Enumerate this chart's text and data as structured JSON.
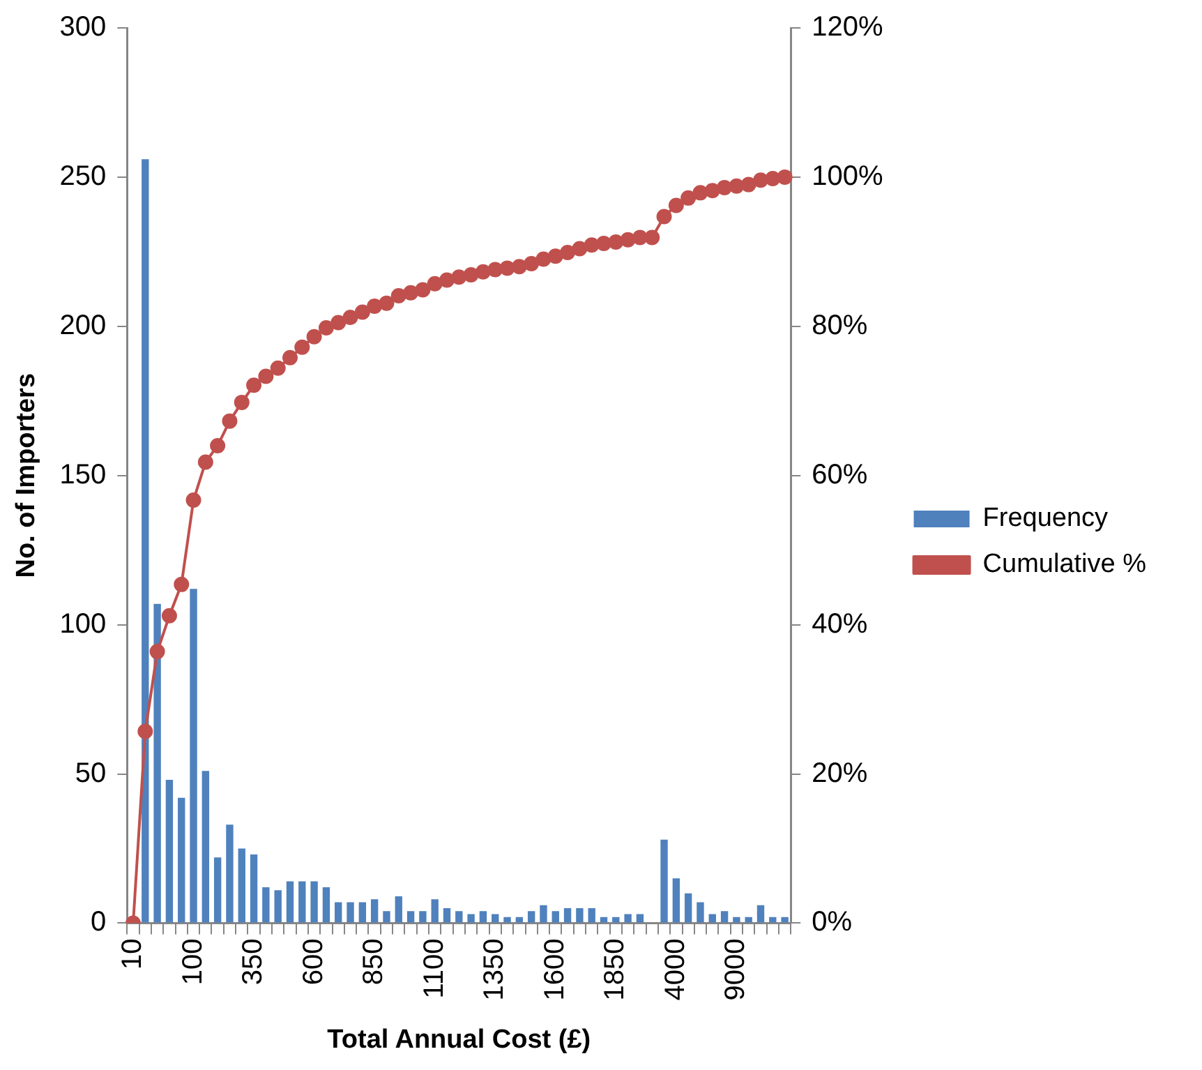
{
  "chart_data": {
    "type": "bar",
    "xlabel": "Total Annual Cost (£)",
    "ylabel": "No. of Importers",
    "categories": [
      "10",
      null,
      null,
      null,
      null,
      "100",
      null,
      null,
      null,
      null,
      "350",
      null,
      null,
      null,
      null,
      "600",
      null,
      null,
      null,
      null,
      "850",
      null,
      null,
      null,
      null,
      "1100",
      null,
      null,
      null,
      null,
      "1350",
      null,
      null,
      null,
      null,
      "1600",
      null,
      null,
      null,
      null,
      "1850",
      null,
      null,
      null,
      null,
      "4000",
      null,
      null,
      null,
      null,
      "9000",
      null,
      null,
      null,
      null
    ],
    "series": [
      {
        "name": "Frequency",
        "color": "#4f81bd",
        "values": [
          0,
          256,
          107,
          48,
          42,
          112,
          51,
          22,
          33,
          25,
          23,
          12,
          11,
          14,
          14,
          14,
          12,
          7,
          7,
          7,
          8,
          4,
          9,
          4,
          4,
          8,
          5,
          4,
          3,
          4,
          3,
          2,
          2,
          4,
          6,
          4,
          5,
          5,
          5,
          2,
          2,
          3,
          3,
          0,
          28,
          15,
          10,
          7,
          3,
          4,
          2,
          2,
          6,
          2,
          2
        ]
      },
      {
        "name": "Cumulative %",
        "type": "line",
        "axis": "y2",
        "color": "#c0504d",
        "marker": "circle",
        "values": [
          0,
          25.7,
          36.4,
          41.2,
          45.4,
          56.7,
          61.8,
          64.0,
          67.3,
          69.8,
          72.1,
          73.3,
          74.4,
          75.8,
          77.2,
          78.6,
          79.8,
          80.5,
          81.2,
          81.9,
          82.7,
          83.1,
          84.1,
          84.5,
          84.9,
          85.7,
          86.2,
          86.6,
          86.9,
          87.3,
          87.6,
          87.8,
          88.0,
          88.4,
          89.0,
          89.4,
          89.9,
          90.4,
          90.9,
          91.1,
          91.3,
          91.6,
          91.9,
          91.9,
          94.7,
          96.2,
          97.2,
          97.9,
          98.2,
          98.6,
          98.8,
          99.0,
          99.6,
          99.8,
          100
        ]
      }
    ],
    "ylim": [
      0,
      300
    ],
    "yticks": [
      0,
      50,
      100,
      150,
      200,
      250,
      300
    ],
    "y2lim": [
      0,
      120
    ],
    "y2ticks": [
      {
        "value": 0,
        "label": "0%"
      },
      {
        "value": 20,
        "label": "20%"
      },
      {
        "value": 40,
        "label": "40%"
      },
      {
        "value": 60,
        "label": "60%"
      },
      {
        "value": 80,
        "label": "80%"
      },
      {
        "value": 100,
        "label": "100%"
      },
      {
        "value": 120,
        "label": "120%"
      }
    ],
    "grid": false,
    "legend": "right"
  }
}
